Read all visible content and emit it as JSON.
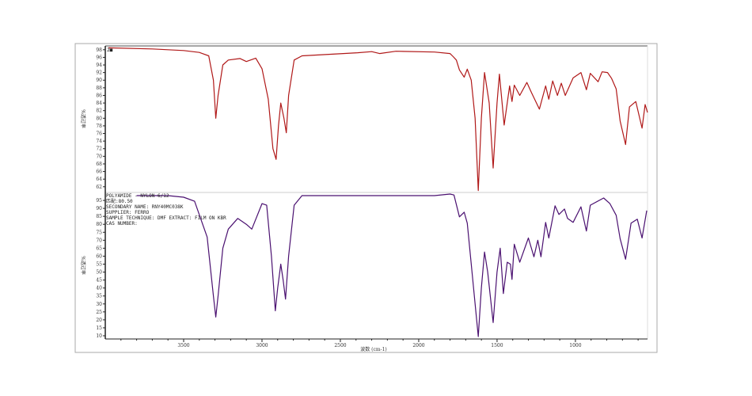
{
  "chart_data": [
    {
      "type": "line",
      "panel": "top",
      "ylabel": "%透过率",
      "xlabel": "",
      "xlim": [
        4000,
        540
      ],
      "ylim": [
        60.5,
        99
      ],
      "yticks": [
        62,
        64,
        66,
        68,
        70,
        72,
        74,
        76,
        78,
        80,
        82,
        84,
        86,
        88,
        90,
        92,
        94,
        96,
        98
      ],
      "color": "#b01818",
      "marker_label": "2■",
      "series": [
        {
          "x": [
            3980,
            3700,
            3500,
            3400,
            3340,
            3310,
            3295,
            3280,
            3250,
            3215,
            3140,
            3100,
            3040,
            3000,
            2960,
            2930,
            2910,
            2895,
            2880,
            2860,
            2845,
            2830,
            2795,
            2745,
            2390,
            2300,
            2250,
            2145,
            1900,
            1800,
            1780,
            1760,
            1740,
            1710,
            1690,
            1665,
            1640,
            1620,
            1600,
            1580,
            1550,
            1525,
            1500,
            1485,
            1455,
            1420,
            1405,
            1390,
            1355,
            1310,
            1280,
            1230,
            1190,
            1170,
            1145,
            1115,
            1090,
            1065,
            1015,
            965,
            930,
            905,
            855,
            830,
            795,
            770,
            740,
            715,
            680,
            655,
            615,
            575,
            555,
            540
          ],
          "y": [
            98.5,
            98.2,
            97.8,
            97.3,
            96.4,
            90,
            80,
            86,
            94,
            95.3,
            95.7,
            94.9,
            95.8,
            93,
            85,
            72,
            69.2,
            78,
            84,
            80,
            76.2,
            86,
            95.3,
            96.4,
            97.2,
            97.5,
            97,
            97.6,
            97.4,
            97,
            96.2,
            95.3,
            92.7,
            90.8,
            92.9,
            90,
            80,
            61,
            80,
            92,
            84,
            66.9,
            84,
            91.6,
            78.2,
            88.5,
            84.4,
            88.7,
            86,
            89.4,
            86.7,
            82.4,
            88.5,
            85,
            89.8,
            86,
            89.2,
            86,
            90.6,
            92,
            87.5,
            91.8,
            89.6,
            92.2,
            92,
            90.5,
            87.7,
            79.3,
            73.1,
            83,
            84.4,
            77.4,
            83.6,
            81.5
          ]
        }
      ]
    },
    {
      "type": "line",
      "panel": "bottom",
      "ylabel": "%透过率",
      "xlabel": "波数 (cm-1)",
      "xlim": [
        4000,
        540
      ],
      "ylim": [
        8,
        100
      ],
      "yticks": [
        10,
        15,
        20,
        25,
        30,
        35,
        40,
        45,
        50,
        55,
        60,
        65,
        70,
        75,
        80,
        85,
        90,
        95
      ],
      "xticks": [
        3500,
        3000,
        2500,
        2000,
        1500,
        1000
      ],
      "color": "#4a1070",
      "series": [
        {
          "x": [
            3800,
            3600,
            3500,
            3430,
            3350,
            3310,
            3295,
            3280,
            3250,
            3215,
            3155,
            3100,
            3065,
            3000,
            2970,
            2940,
            2915,
            2900,
            2880,
            2865,
            2850,
            2830,
            2795,
            2745,
            2400,
            2200,
            1900,
            1800,
            1775,
            1740,
            1710,
            1690,
            1660,
            1620,
            1600,
            1580,
            1560,
            1525,
            1500,
            1480,
            1460,
            1435,
            1415,
            1405,
            1390,
            1355,
            1300,
            1265,
            1240,
            1220,
            1190,
            1170,
            1130,
            1105,
            1070,
            1050,
            1015,
            965,
            930,
            905,
            820,
            780,
            740,
            715,
            680,
            645,
            605,
            575,
            545
          ],
          "y": [
            98,
            98,
            97,
            94.5,
            72,
            35,
            21.8,
            35,
            65,
            77,
            83.7,
            80,
            77,
            93,
            92,
            60,
            25.7,
            40,
            55,
            45,
            33,
            60,
            92,
            98,
            98,
            98,
            98,
            99,
            98.4,
            84.7,
            87.6,
            80.7,
            50,
            9.5,
            40,
            62.6,
            50,
            18.3,
            50,
            65,
            36.5,
            56.2,
            55,
            45.4,
            67.5,
            56.2,
            71.4,
            59.6,
            70,
            59.6,
            81.2,
            71.4,
            91.6,
            86.2,
            89.6,
            83.7,
            81.2,
            91,
            75.8,
            92,
            96.5,
            93,
            85.7,
            71,
            58.1,
            80.7,
            83.2,
            71.4,
            88.6
          ]
        }
      ],
      "annotation": [
        "POLYAMIDE - NYLON 6/12",
        "匹配:80.50",
        "SECONDARY NAME:  RNY40MC038K",
        "SUPPLIER:  FERRO",
        "SAMPLE TECHNIQUE:  DMF EXTRACT: FILM ON KBR",
        "CAS NUMBER:"
      ]
    }
  ]
}
